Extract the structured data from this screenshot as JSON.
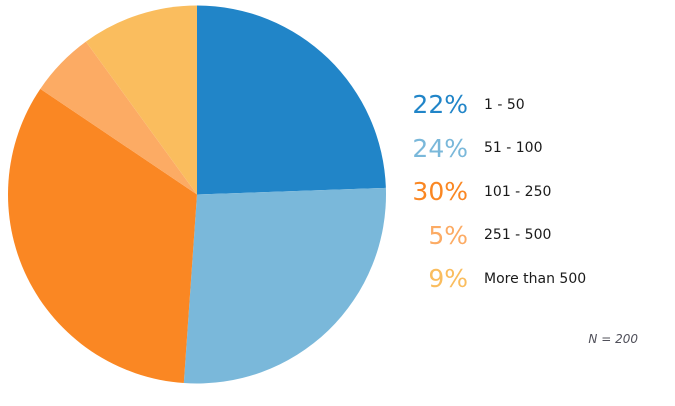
{
  "chart_data": {
    "type": "pie",
    "title": "",
    "categories": [
      "1 - 50",
      "51 - 100",
      "101 - 250",
      "251 - 500",
      "More than 500"
    ],
    "values": [
      22,
      24,
      30,
      5,
      9
    ],
    "percent_labels": [
      "22%",
      "24%",
      "30%",
      "5%",
      "9%"
    ],
    "colors": [
      "#2185c8",
      "#7ab8da",
      "#fa8723",
      "#fcab64",
      "#fabd5e"
    ],
    "start_angle_deg": 0,
    "direction": "clockwise",
    "legend_position": "right",
    "note": "N = 200",
    "label_color": "#1a1a1a",
    "note_color": "#50505a"
  }
}
